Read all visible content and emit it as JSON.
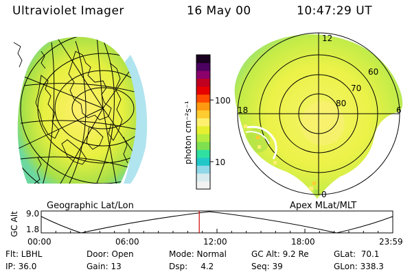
{
  "header": {
    "instrument": "Ultraviolet Imager",
    "date": "16 May 00",
    "time": "10:47:29 UT"
  },
  "left_panel": {
    "label": "Geographic Lat/Lon"
  },
  "right_panel": {
    "label": "Apex MLat/MLT",
    "mlt_labels": [
      "12",
      "18",
      "6",
      "0"
    ],
    "lat_labels": [
      "60",
      "70",
      "80"
    ]
  },
  "colorbar": {
    "unit_label": "photon cm⁻²s⁻¹",
    "ticks": [
      "100",
      "10"
    ],
    "colors": [
      "#f2f2f2",
      "#d8ecf0",
      "#8fd8e8",
      "#22c8c8",
      "#30e0a0",
      "#7ee050",
      "#b4ec40",
      "#e6f030",
      "#fff070",
      "#ffcc30",
      "#ff9a10",
      "#ff4c00",
      "#e60000",
      "#c00020",
      "#8c006c",
      "#4c0060",
      "#1a0020"
    ]
  },
  "timeline": {
    "axis_label": "GC Alt",
    "y_max": "9.0",
    "y_min": "1.8",
    "ticks": [
      "00:00",
      "06:00",
      "12:00",
      "18:00",
      "23:59"
    ],
    "marker_hour": 10.79,
    "marker_color": "#d00000"
  },
  "info": {
    "flt": "Flt: LBHL",
    "ip": "IP: 36.0",
    "door": "Door: Open",
    "gain": "Gain: 13",
    "mode": "Mode: Normal",
    "dsp": "Dsp:     4.2",
    "gcalt": "GC Alt: 9.2 Re",
    "seq": "Seq: 39",
    "glat": "GLat:  70.1",
    "glon": "GLon: 338.3"
  }
}
